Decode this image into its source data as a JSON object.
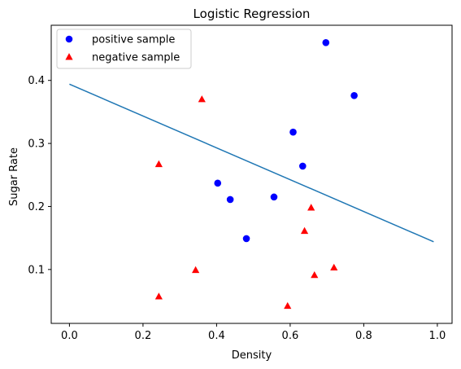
{
  "chart_data": {
    "type": "scatter",
    "title": "Logistic Regression",
    "xlabel": "Density",
    "ylabel": "Sugar Rate",
    "xlim": [
      -0.0495,
      1.04
    ],
    "ylim": [
      0.0145,
      0.4875
    ],
    "xticks": [
      0.0,
      0.2,
      0.4,
      0.6,
      0.8,
      1.0
    ],
    "xtick_labels": [
      "0.0",
      "0.2",
      "0.4",
      "0.6",
      "0.8",
      "1.0"
    ],
    "yticks": [
      0.1,
      0.2,
      0.3,
      0.4
    ],
    "ytick_labels": [
      "0.1",
      "0.2",
      "0.3",
      "0.4"
    ],
    "grid": false,
    "legend_position": "top-left",
    "series": [
      {
        "name": "positive sample",
        "kind": "scatter",
        "marker": "circle",
        "color": "#0000ff",
        "points": [
          {
            "x": 0.697,
            "y": 0.46
          },
          {
            "x": 0.774,
            "y": 0.376
          },
          {
            "x": 0.634,
            "y": 0.264
          },
          {
            "x": 0.608,
            "y": 0.318
          },
          {
            "x": 0.556,
            "y": 0.215
          },
          {
            "x": 0.403,
            "y": 0.237
          },
          {
            "x": 0.437,
            "y": 0.211
          },
          {
            "x": 0.481,
            "y": 0.149
          }
        ]
      },
      {
        "name": "negative sample",
        "kind": "scatter",
        "marker": "triangle",
        "color": "#ff0000",
        "points": [
          {
            "x": 0.36,
            "y": 0.37
          },
          {
            "x": 0.243,
            "y": 0.267
          },
          {
            "x": 0.657,
            "y": 0.198
          },
          {
            "x": 0.639,
            "y": 0.161
          },
          {
            "x": 0.719,
            "y": 0.103
          },
          {
            "x": 0.343,
            "y": 0.099
          },
          {
            "x": 0.666,
            "y": 0.091
          },
          {
            "x": 0.243,
            "y": 0.057
          },
          {
            "x": 0.593,
            "y": 0.042
          }
        ]
      },
      {
        "name": "",
        "kind": "line",
        "color": "#1f77b4",
        "points": [
          {
            "x": 0.0,
            "y": 0.394
          },
          {
            "x": 0.99,
            "y": 0.144
          }
        ]
      }
    ]
  }
}
